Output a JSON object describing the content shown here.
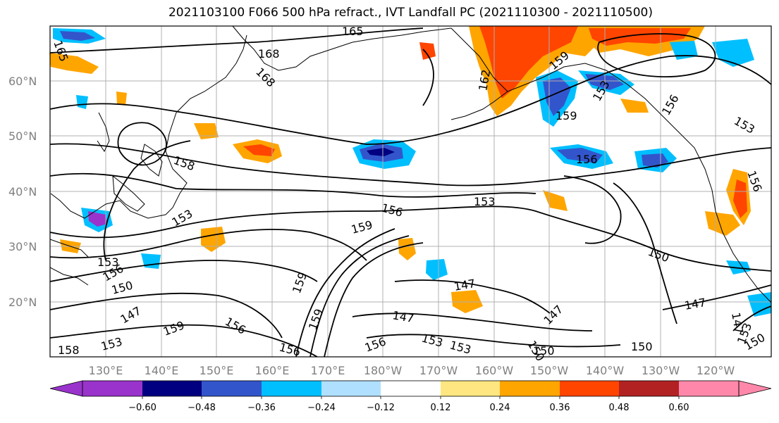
{
  "title": "2021103100 F066 500 hPa refract., IVT Landfall PC (2021110300 - 2021110500)",
  "lat_labels": [
    "60°N",
    "50°N",
    "40°N",
    "30°N",
    "20°N"
  ],
  "lon_labels": [
    "130°E",
    "140°E",
    "150°E",
    "160°E",
    "170°E",
    "180°W",
    "170°W",
    "160°W",
    "150°W",
    "140°W",
    "130°W",
    "120°W"
  ],
  "contour_labels": [
    "165",
    "168",
    "168",
    "165",
    "162",
    "159",
    "153",
    "159",
    "156",
    "153",
    "156",
    "158",
    "153",
    "156",
    "159",
    "153",
    "156",
    "159",
    "150",
    "153",
    "156",
    "150",
    "147",
    "159",
    "156",
    "159",
    "147",
    "147",
    "150",
    "147",
    "147",
    "156",
    "153",
    "150",
    "150",
    "147",
    "153",
    "150",
    "153",
    "158",
    "156",
    "153"
  ],
  "colorbar": {
    "ticks": [
      "−0.60",
      "−0.48",
      "−0.36",
      "−0.24",
      "−0.12",
      "0.12",
      "0.24",
      "0.36",
      "0.48",
      "0.60"
    ],
    "colors": [
      "#9933cc",
      "#000080",
      "#3355cc",
      "#00bfff",
      "#b0e0ff",
      "#ffffff",
      "#ffe680",
      "#ffa500",
      "#ff4500",
      "#b22222",
      "#ff88aa"
    ]
  }
}
